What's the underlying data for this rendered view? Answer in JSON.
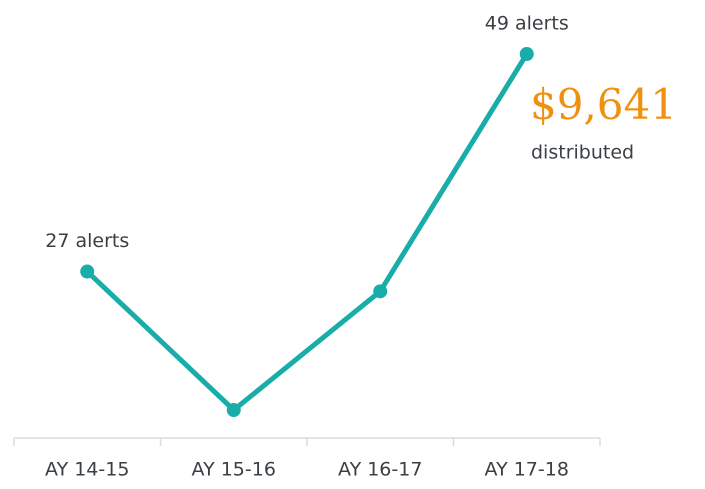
{
  "chart_data": {
    "type": "line",
    "categories": [
      "AY 14-15",
      "AY 15-16",
      "AY 16-17",
      "AY 17-18"
    ],
    "values": [
      27,
      13,
      25,
      49
    ],
    "value_labels": [
      "27 alerts",
      null,
      null,
      "49 alerts"
    ],
    "color": "#18ada8",
    "annotation": {
      "amount": "$9,641",
      "text": "distributed",
      "color": "#f0900f"
    }
  }
}
